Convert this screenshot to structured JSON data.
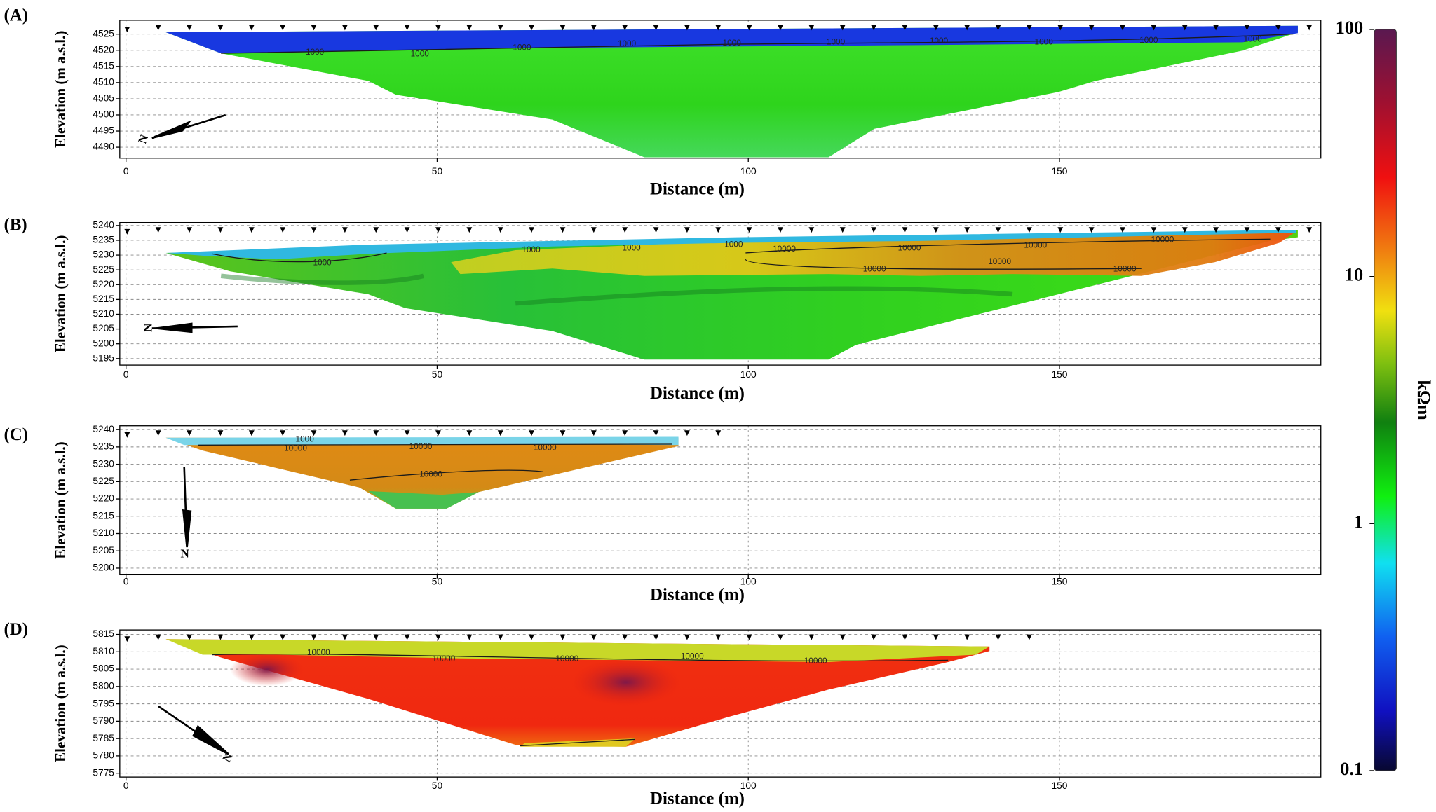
{
  "chart_data": [
    {
      "type": "section",
      "panel_label": "(A)",
      "x_label": "Distance (m)",
      "y_label": "Elevation (m a.s.l.)",
      "xlim": [
        -1,
        192
      ],
      "xticks": [
        0,
        50,
        100,
        150
      ],
      "ylim": [
        4486.6,
        4529.3
      ],
      "yticks": [
        4490,
        4495,
        4500,
        4505,
        4510,
        4515,
        4520,
        4525
      ],
      "grid": true,
      "contour_labels": [
        1000,
        1000,
        1000,
        1000,
        1000,
        1000,
        1000,
        1000,
        1000,
        1000
      ],
      "north_label": "N"
    },
    {
      "type": "section",
      "panel_label": "(B)",
      "x_label": "Distance (m)",
      "y_label": "Elevation (m a.s.l.)",
      "xlim": [
        -1,
        192
      ],
      "xticks": [
        0,
        50,
        100,
        150
      ],
      "ylim": [
        5192.8,
        5241
      ],
      "yticks": [
        5195,
        5200,
        5205,
        5210,
        5215,
        5220,
        5225,
        5230,
        5235,
        5240
      ],
      "grid": true,
      "contour_labels": [
        1000,
        1000,
        1000,
        1000,
        10000,
        10000,
        10000,
        10000,
        10000,
        10000,
        10000
      ],
      "north_label": "N"
    },
    {
      "type": "section",
      "panel_label": "(C)",
      "x_label": "Distance (m)",
      "y_label": "Elevation (m a.s.l.)",
      "xlim": [
        -1,
        192
      ],
      "xticks": [
        0,
        50,
        100,
        150
      ],
      "ylim": [
        5198.1,
        5241.1
      ],
      "yticks": [
        5200,
        5205,
        5210,
        5215,
        5220,
        5225,
        5230,
        5235,
        5240
      ],
      "grid": true,
      "contour_labels": [
        1000,
        10000,
        10000,
        10000,
        10000
      ],
      "north_label": "N"
    },
    {
      "type": "section",
      "panel_label": "(D)",
      "x_label": "Distance (m)",
      "y_label": "Elevation (m a.s.l.)",
      "xlim": [
        -1,
        192
      ],
      "xticks": [
        0,
        50,
        100,
        150
      ],
      "ylim": [
        5773.9,
        5816.3
      ],
      "yticks": [
        5775,
        5780,
        5785,
        5790,
        5795,
        5800,
        5805,
        5810,
        5815
      ],
      "grid": true,
      "contour_labels": [
        10000,
        10000,
        10000,
        10000,
        10000
      ],
      "north_label": "N"
    },
    {
      "type": "colorbar",
      "label": "kΩm",
      "log_scale": true,
      "ylim": [
        0.1,
        100
      ],
      "yticks": [
        0.1,
        1,
        10,
        100
      ]
    }
  ]
}
